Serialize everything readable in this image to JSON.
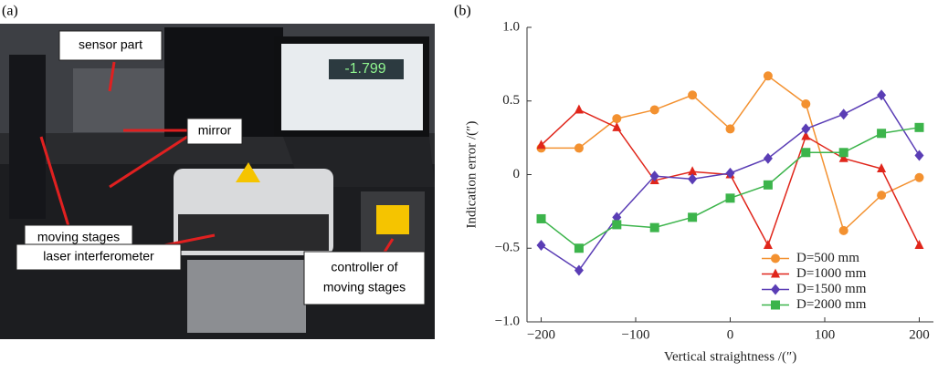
{
  "photo": {
    "label": "(a)",
    "annotations": {
      "sensor": "sensor part",
      "mirror": "mirror",
      "stages": "moving stages",
      "laser": "laser interferometer",
      "controller": [
        "controller of",
        "moving stages"
      ],
      "screen": "-1.799"
    }
  },
  "chart_data": {
    "type": "line",
    "panel_label": "(b)",
    "xlabel": "Vertical straightness /(″)",
    "ylabel": "Indication error /(″)",
    "x": [
      -200,
      -160,
      -120,
      -80,
      -40,
      0,
      40,
      80,
      120,
      160,
      200
    ],
    "series": [
      {
        "name": "D=500 mm",
        "color": "#f39130",
        "marker": "circle",
        "values": [
          0.18,
          0.18,
          0.38,
          0.44,
          0.54,
          0.31,
          0.67,
          0.48,
          -0.38,
          -0.14,
          -0.02
        ]
      },
      {
        "name": "D=1000 mm",
        "color": "#e0261b",
        "marker": "triangle",
        "values": [
          0.2,
          0.44,
          0.32,
          -0.04,
          0.02,
          0.0,
          -0.48,
          0.26,
          0.11,
          0.04,
          -0.48
        ]
      },
      {
        "name": "D=1500 mm",
        "color": "#5a3db5",
        "marker": "diamond",
        "values": [
          -0.48,
          -0.65,
          -0.29,
          -0.01,
          -0.03,
          0.01,
          0.11,
          0.31,
          0.41,
          0.54,
          0.13
        ]
      },
      {
        "name": "D=2000 mm",
        "color": "#3cb44b",
        "marker": "square",
        "values": [
          -0.3,
          -0.5,
          -0.34,
          -0.36,
          -0.29,
          -0.16,
          -0.07,
          0.15,
          0.15,
          0.28,
          0.32
        ]
      }
    ],
    "xlim": [
      -215,
      215
    ],
    "xticks": [
      {
        "value": -200,
        "label": "−200"
      },
      {
        "value": -100,
        "label": "−100"
      },
      0,
      100,
      200
    ],
    "ylim": [
      -1,
      1
    ],
    "yticks": [
      {
        "value": -1,
        "label": "−1.0"
      },
      {
        "value": -0.5,
        "label": "−0.5"
      },
      0,
      0.5,
      {
        "value": 1,
        "label": "1.0"
      }
    ],
    "legend": "lower right"
  }
}
